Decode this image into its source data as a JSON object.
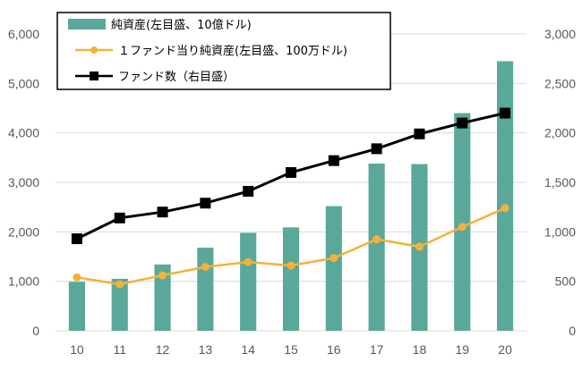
{
  "chart_data": {
    "type": "bar",
    "categories": [
      "10",
      "11",
      "12",
      "13",
      "14",
      "15",
      "16",
      "17",
      "18",
      "19",
      "20"
    ],
    "y_left": {
      "min": 0,
      "max": 6000,
      "step": 1000,
      "tick_labels": [
        "0",
        "1,000",
        "2,000",
        "3,000",
        "4,000",
        "5,000",
        "6,000"
      ]
    },
    "y_right": {
      "min": 0,
      "max": 3000,
      "step": 500,
      "tick_labels": [
        "0",
        "500",
        "1,000",
        "1,500",
        "2,000",
        "2,500",
        "3,000"
      ]
    },
    "series": [
      {
        "name": "純資産(左目盛、10億ドル)",
        "type": "bar",
        "axis": "left",
        "color": "#5aa89a",
        "values": [
          990,
          1050,
          1340,
          1680,
          1980,
          2090,
          2520,
          3380,
          3370,
          4400,
          5450
        ]
      },
      {
        "name": "１ファンド当り純資産(左目盛、100万ドル)",
        "type": "line",
        "axis": "left",
        "color": "#f4b23a",
        "marker": "circle",
        "values": [
          1080,
          940,
          1120,
          1290,
          1390,
          1320,
          1470,
          1850,
          1700,
          2100,
          2480
        ]
      },
      {
        "name": "ファンド数（右目盛）",
        "type": "line",
        "axis": "right",
        "color": "#000000",
        "marker": "square",
        "values": [
          930,
          1140,
          1200,
          1290,
          1410,
          1600,
          1720,
          1840,
          1990,
          2100,
          2200
        ]
      }
    ]
  }
}
